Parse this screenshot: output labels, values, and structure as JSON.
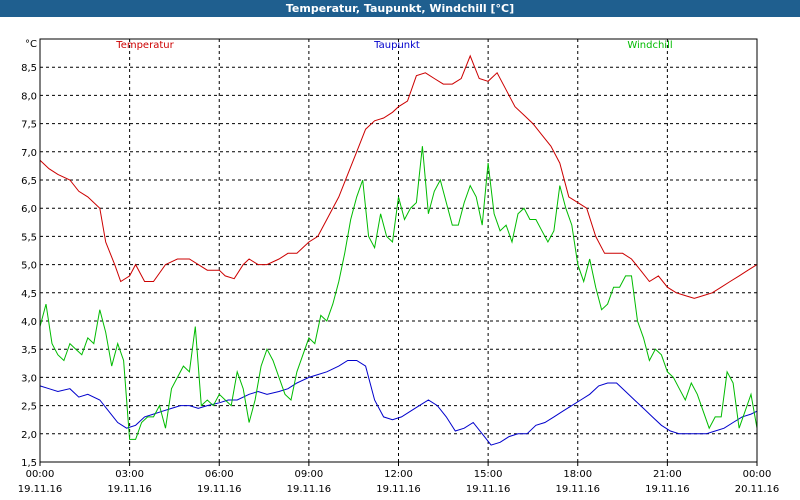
{
  "window": {
    "title": "Temperatur, Taupunkt, Windchill [°C]"
  },
  "chart_data": {
    "type": "line",
    "title": "Temperatur, Taupunkt, Windchill [°C]",
    "ylabel": "°C",
    "ylim": [
      1.5,
      9.0
    ],
    "yticks": [
      "1,5",
      "2,0",
      "2,5",
      "3,0",
      "3,5",
      "4,0",
      "4,5",
      "5,0",
      "5,5",
      "6,0",
      "6,5",
      "7,0",
      "7,5",
      "8,0",
      "8,5"
    ],
    "xlim": [
      0,
      24
    ],
    "xticks": [
      {
        "time": "00:00",
        "date": "19.11.16",
        "h": 0
      },
      {
        "time": "03:00",
        "date": "19.11.16",
        "h": 3
      },
      {
        "time": "06:00",
        "date": "19.11.16",
        "h": 6
      },
      {
        "time": "09:00",
        "date": "19.11.16",
        "h": 9
      },
      {
        "time": "12:00",
        "date": "19.11.16",
        "h": 12
      },
      {
        "time": "15:00",
        "date": "19.11.16",
        "h": 15
      },
      {
        "time": "18:00",
        "date": "19.11.16",
        "h": 18
      },
      {
        "time": "21:00",
        "date": "19.11.16",
        "h": 21
      },
      {
        "time": "00:00",
        "date": "20.11.16",
        "h": 24
      }
    ],
    "grid": true,
    "series": [
      {
        "name": "Temperatur",
        "color": "#cc0000",
        "x": [
          0,
          0.3,
          0.6,
          1.0,
          1.3,
          1.6,
          2.0,
          2.2,
          2.5,
          2.7,
          3.0,
          3.2,
          3.5,
          3.8,
          4.2,
          4.6,
          5.0,
          5.3,
          5.6,
          6.0,
          6.2,
          6.5,
          6.8,
          7.0,
          7.3,
          7.6,
          8.0,
          8.3,
          8.6,
          9.0,
          9.3,
          9.6,
          10.0,
          10.3,
          10.6,
          10.9,
          11.2,
          11.5,
          11.8,
          12.0,
          12.3,
          12.6,
          12.9,
          13.2,
          13.5,
          13.8,
          14.1,
          14.4,
          14.7,
          15.0,
          15.3,
          15.6,
          15.9,
          16.2,
          16.5,
          16.8,
          17.1,
          17.4,
          17.7,
          18.0,
          18.3,
          18.6,
          18.9,
          19.2,
          19.5,
          19.8,
          20.1,
          20.4,
          20.7,
          21.0,
          21.3,
          21.6,
          21.9,
          22.2,
          22.5,
          22.8,
          23.1,
          23.4,
          23.7,
          24.0
        ],
        "values": [
          6.85,
          6.7,
          6.6,
          6.5,
          6.3,
          6.2,
          6.0,
          5.4,
          5.0,
          4.7,
          4.8,
          5.0,
          4.7,
          4.7,
          5.0,
          5.1,
          5.1,
          5.0,
          4.9,
          4.9,
          4.8,
          4.75,
          5.0,
          5.1,
          5.0,
          5.0,
          5.1,
          5.2,
          5.2,
          5.4,
          5.5,
          5.8,
          6.2,
          6.6,
          7.0,
          7.4,
          7.55,
          7.6,
          7.7,
          7.8,
          7.9,
          8.35,
          8.4,
          8.3,
          8.2,
          8.2,
          8.3,
          8.7,
          8.3,
          8.25,
          8.4,
          8.1,
          7.8,
          7.65,
          7.5,
          7.3,
          7.1,
          6.8,
          6.2,
          6.1,
          6.0,
          5.5,
          5.2,
          5.2,
          5.2,
          5.1,
          4.9,
          4.7,
          4.8,
          4.6,
          4.5,
          4.45,
          4.4,
          4.45,
          4.5,
          4.6,
          4.7,
          4.8,
          4.9,
          5.0
        ]
      },
      {
        "name": "Taupunkt",
        "color": "#0000cc",
        "x": [
          0,
          0.3,
          0.6,
          1.0,
          1.3,
          1.6,
          2.0,
          2.3,
          2.6,
          2.9,
          3.2,
          3.5,
          3.8,
          4.1,
          4.4,
          4.7,
          5.0,
          5.3,
          5.6,
          6.0,
          6.3,
          6.6,
          7.0,
          7.3,
          7.6,
          8.0,
          8.3,
          8.6,
          9.0,
          9.3,
          9.6,
          10.0,
          10.3,
          10.6,
          10.9,
          11.2,
          11.5,
          11.8,
          12.1,
          12.4,
          12.7,
          13.0,
          13.3,
          13.6,
          13.9,
          14.2,
          14.5,
          14.8,
          15.1,
          15.4,
          15.7,
          16.0,
          16.3,
          16.6,
          16.9,
          17.2,
          17.5,
          17.8,
          18.1,
          18.4,
          18.7,
          19.0,
          19.3,
          19.6,
          19.9,
          20.2,
          20.5,
          20.8,
          21.1,
          21.4,
          21.7,
          22.0,
          22.3,
          22.6,
          22.9,
          23.2,
          23.5,
          23.8,
          24.0
        ],
        "values": [
          2.85,
          2.8,
          2.75,
          2.8,
          2.65,
          2.7,
          2.6,
          2.4,
          2.2,
          2.1,
          2.15,
          2.3,
          2.35,
          2.4,
          2.45,
          2.5,
          2.5,
          2.45,
          2.5,
          2.55,
          2.6,
          2.6,
          2.7,
          2.75,
          2.7,
          2.75,
          2.8,
          2.9,
          3.0,
          3.05,
          3.1,
          3.2,
          3.3,
          3.3,
          3.2,
          2.6,
          2.3,
          2.25,
          2.3,
          2.4,
          2.5,
          2.6,
          2.5,
          2.3,
          2.05,
          2.1,
          2.2,
          2.0,
          1.8,
          1.85,
          1.95,
          2.0,
          2.0,
          2.15,
          2.2,
          2.3,
          2.4,
          2.5,
          2.6,
          2.7,
          2.85,
          2.9,
          2.9,
          2.75,
          2.6,
          2.45,
          2.3,
          2.15,
          2.05,
          2.0,
          2.0,
          2.0,
          2.0,
          2.05,
          2.1,
          2.2,
          2.3,
          2.35,
          2.4
        ]
      },
      {
        "name": "Windchill",
        "color": "#00bb00",
        "x": [
          0,
          0.2,
          0.4,
          0.6,
          0.8,
          1.0,
          1.2,
          1.4,
          1.6,
          1.8,
          2.0,
          2.2,
          2.4,
          2.6,
          2.8,
          3.0,
          3.2,
          3.4,
          3.6,
          3.8,
          4.0,
          4.2,
          4.4,
          4.6,
          4.8,
          5.0,
          5.2,
          5.4,
          5.6,
          5.8,
          6.0,
          6.2,
          6.4,
          6.6,
          6.8,
          7.0,
          7.2,
          7.4,
          7.6,
          7.8,
          8.0,
          8.2,
          8.4,
          8.6,
          8.8,
          9.0,
          9.2,
          9.4,
          9.6,
          9.8,
          10.0,
          10.2,
          10.4,
          10.6,
          10.8,
          11.0,
          11.2,
          11.4,
          11.6,
          11.8,
          12.0,
          12.2,
          12.4,
          12.6,
          12.8,
          13.0,
          13.2,
          13.4,
          13.6,
          13.8,
          14.0,
          14.2,
          14.4,
          14.6,
          14.8,
          15.0,
          15.2,
          15.4,
          15.6,
          15.8,
          16.0,
          16.2,
          16.4,
          16.6,
          16.8,
          17.0,
          17.2,
          17.4,
          17.6,
          17.8,
          18.0,
          18.2,
          18.4,
          18.6,
          18.8,
          19.0,
          19.2,
          19.4,
          19.6,
          19.8,
          20.0,
          20.2,
          20.4,
          20.6,
          20.8,
          21.0,
          21.2,
          21.4,
          21.6,
          21.8,
          22.0,
          22.2,
          22.4,
          22.6,
          22.8,
          23.0,
          23.2,
          23.4,
          23.6,
          23.8,
          24.0
        ],
        "values": [
          3.9,
          4.3,
          3.6,
          3.4,
          3.3,
          3.6,
          3.5,
          3.4,
          3.7,
          3.6,
          4.2,
          3.8,
          3.2,
          3.6,
          3.3,
          1.9,
          1.9,
          2.2,
          2.3,
          2.3,
          2.5,
          2.1,
          2.8,
          3.0,
          3.2,
          3.1,
          3.9,
          2.5,
          2.6,
          2.5,
          2.7,
          2.6,
          2.5,
          3.1,
          2.8,
          2.2,
          2.6,
          3.2,
          3.5,
          3.3,
          3.0,
          2.7,
          2.6,
          3.1,
          3.4,
          3.7,
          3.6,
          4.1,
          4.0,
          4.3,
          4.7,
          5.2,
          5.8,
          6.2,
          6.5,
          5.5,
          5.3,
          5.9,
          5.5,
          5.4,
          6.2,
          5.8,
          6.0,
          6.1,
          7.1,
          5.9,
          6.3,
          6.5,
          6.1,
          5.7,
          5.7,
          6.1,
          6.4,
          6.2,
          5.7,
          6.8,
          5.9,
          5.6,
          5.7,
          5.4,
          5.9,
          6.0,
          5.8,
          5.8,
          5.6,
          5.4,
          5.6,
          6.4,
          6.0,
          5.7,
          5.0,
          4.7,
          5.1,
          4.6,
          4.2,
          4.3,
          4.6,
          4.6,
          4.8,
          4.8,
          4.0,
          3.7,
          3.3,
          3.5,
          3.4,
          3.1,
          3.0,
          2.8,
          2.6,
          2.9,
          2.7,
          2.4,
          2.1,
          2.3,
          2.3,
          3.1,
          2.9,
          2.1,
          2.4,
          2.7,
          2.1
        ]
      }
    ]
  }
}
